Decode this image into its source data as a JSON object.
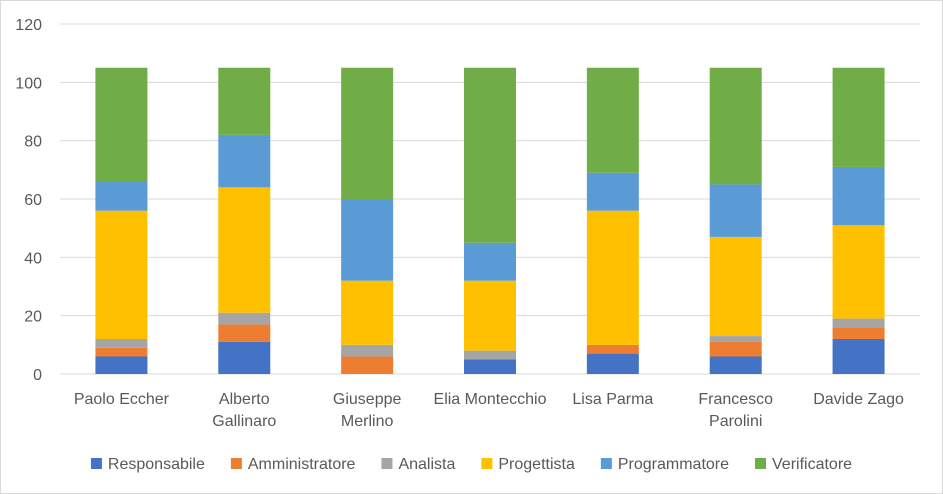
{
  "chart_data": {
    "type": "bar",
    "stacked": true,
    "categories": [
      [
        "Paolo Eccher"
      ],
      [
        "Alberto",
        "Gallinaro"
      ],
      [
        "Giuseppe",
        "Merlino"
      ],
      [
        "Elia Montecchio"
      ],
      [
        "Lisa Parma"
      ],
      [
        "Francesco",
        "Parolini"
      ],
      [
        "Davide Zago"
      ]
    ],
    "series": [
      {
        "name": "Responsabile",
        "color": "#4472c4",
        "values": [
          6,
          11,
          0,
          5,
          7,
          6,
          12
        ]
      },
      {
        "name": "Amministratore",
        "color": "#ed7d31",
        "values": [
          3,
          6,
          6,
          0,
          3,
          5,
          4
        ]
      },
      {
        "name": "Analista",
        "color": "#a5a5a5",
        "values": [
          3,
          4,
          4,
          3,
          0,
          2,
          3
        ]
      },
      {
        "name": "Progettista",
        "color": "#ffc000",
        "values": [
          44,
          43,
          22,
          24,
          46,
          34,
          32
        ]
      },
      {
        "name": "Programmatore",
        "color": "#5b9bd5",
        "values": [
          10,
          18,
          28,
          13,
          13,
          18,
          20
        ]
      },
      {
        "name": "Verificatore",
        "color": "#70ad47",
        "values": [
          39,
          23,
          45,
          60,
          36,
          40,
          34
        ]
      }
    ],
    "yticks": [
      0,
      20,
      40,
      60,
      80,
      100,
      120
    ],
    "ylim": [
      0,
      120
    ],
    "grid": true,
    "legend": "bottom"
  }
}
